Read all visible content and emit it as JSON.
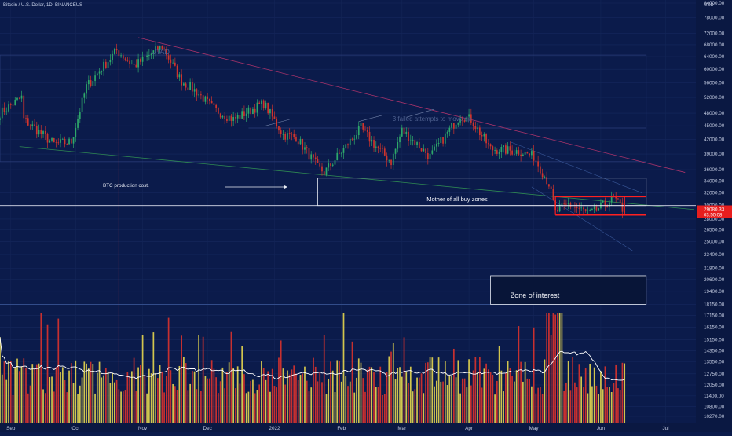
{
  "header": {
    "symbol_line": "Bitcoin / U.S. Dollar, 1D, BINANCEUS"
  },
  "price_axis": {
    "unit": "USD",
    "labels": [
      "84000.00",
      "78000.00",
      "72000.00",
      "68000.00",
      "64000.00",
      "60000.00",
      "56000.00",
      "52000.00",
      "48000.00",
      "45000.00",
      "42000.00",
      "39000.00",
      "36000.00",
      "34000.00",
      "32000.00",
      "30000.00",
      "28000.00",
      "26500.00",
      "25000.00",
      "23400.00",
      "21800.00",
      "20600.00",
      "19400.00",
      "18150.00",
      "17150.00",
      "16150.00",
      "15150.00",
      "14350.00",
      "13550.00",
      "12750.00",
      "12050.00",
      "11400.00",
      "10800.00",
      "10270.00"
    ],
    "current_price": "29080.33",
    "countdown": "03:50:08"
  },
  "time_axis": {
    "labels": [
      "Sep",
      "Oct",
      "Nov",
      "Dec",
      "2022",
      "Feb",
      "Mar",
      "Apr",
      "May",
      "Jun",
      "Jul"
    ]
  },
  "annotations": {
    "utad": "UTAD",
    "failed_attempts": "3 failed attempts to move up",
    "production_cost": "BTC production cost.",
    "mother_zone": "Mother of all buy zones",
    "zone_of_interest": "Zone of interest"
  },
  "colors": {
    "background": "#0b1b4b",
    "up": "#2ea86a",
    "down": "#d0342c",
    "vol_up": "#e3d44e",
    "vol_down": "#d8322c",
    "highlight": "#ff2020",
    "box": "#e6e9f2",
    "price_tag": "#e81e1e"
  },
  "chart_data": {
    "type": "candlestick",
    "x_start": "2021-08-27",
    "x_end": "2022-07-15",
    "ylim": [
      10270,
      84000
    ],
    "scale": "log",
    "anchors": [
      [
        "2021-08-27",
        48000
      ],
      [
        "2021-09-06",
        52000
      ],
      [
        "2021-09-07",
        46500
      ],
      [
        "2021-09-21",
        41000
      ],
      [
        "2021-09-29",
        41500
      ],
      [
        "2021-10-06",
        55000
      ],
      [
        "2021-10-20",
        66000
      ],
      [
        "2021-10-28",
        61000
      ],
      [
        "2021-11-10",
        67500
      ],
      [
        "2021-11-19",
        56500
      ],
      [
        "2021-11-26",
        53500
      ],
      [
        "2021-12-04",
        49000
      ],
      [
        "2021-12-13",
        46500
      ],
      [
        "2021-12-27",
        50500
      ],
      [
        "2022-01-05",
        43000
      ],
      [
        "2022-01-11",
        42500
      ],
      [
        "2022-01-21",
        36500
      ],
      [
        "2022-01-24",
        35500
      ],
      [
        "2022-02-10",
        44500
      ],
      [
        "2022-02-17",
        40500
      ],
      [
        "2022-02-24",
        37500
      ],
      [
        "2022-03-01",
        44000
      ],
      [
        "2022-03-14",
        38500
      ],
      [
        "2022-03-28",
        47500
      ],
      [
        "2022-04-02",
        46500
      ],
      [
        "2022-04-11",
        40000
      ],
      [
        "2022-04-25",
        39500
      ],
      [
        "2022-05-01",
        38500
      ],
      [
        "2022-05-08",
        33500
      ],
      [
        "2022-05-11",
        29000
      ],
      [
        "2022-05-17",
        30200
      ],
      [
        "2022-05-27",
        28800
      ],
      [
        "2022-06-01",
        29800
      ],
      [
        "2022-06-07",
        31200
      ],
      [
        "2022-06-12",
        29080
      ]
    ],
    "volume": {
      "ylim": [
        0,
        1
      ]
    },
    "levels": {
      "mother_zone": [
        30000,
        34500
      ],
      "range_top": 31400,
      "range_bottom": 28600,
      "zone_of_interest": [
        18150,
        21000
      ],
      "horizontal_30k": 30000,
      "horizontal_45k": 44500,
      "horizontal_18k": 18150
    }
  }
}
